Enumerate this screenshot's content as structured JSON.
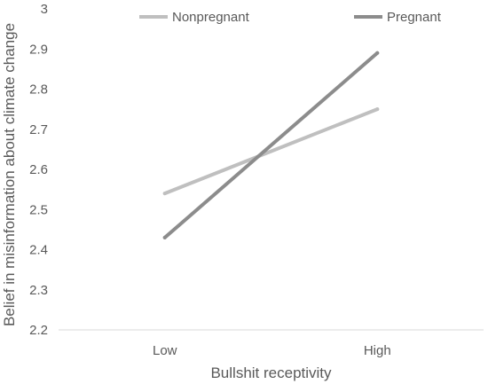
{
  "chart_data": {
    "type": "line",
    "title": "",
    "xlabel": "Bullshit receptivity",
    "ylabel": "Belief in misinformation about climate change",
    "categories": [
      "Low",
      "High"
    ],
    "ylim": [
      2.2,
      3.0
    ],
    "y_ticks": [
      "2.2",
      "2.3",
      "2.4",
      "2.5",
      "2.6",
      "2.7",
      "2.8",
      "2.9",
      "3"
    ],
    "grid": false,
    "legend_position": "top",
    "series": [
      {
        "name": "Nonpregnant",
        "values": [
          2.54,
          2.75
        ],
        "color": "#bfbfbf"
      },
      {
        "name": "Pregnant",
        "values": [
          2.43,
          2.89
        ],
        "color": "#8c8c8c"
      }
    ]
  }
}
